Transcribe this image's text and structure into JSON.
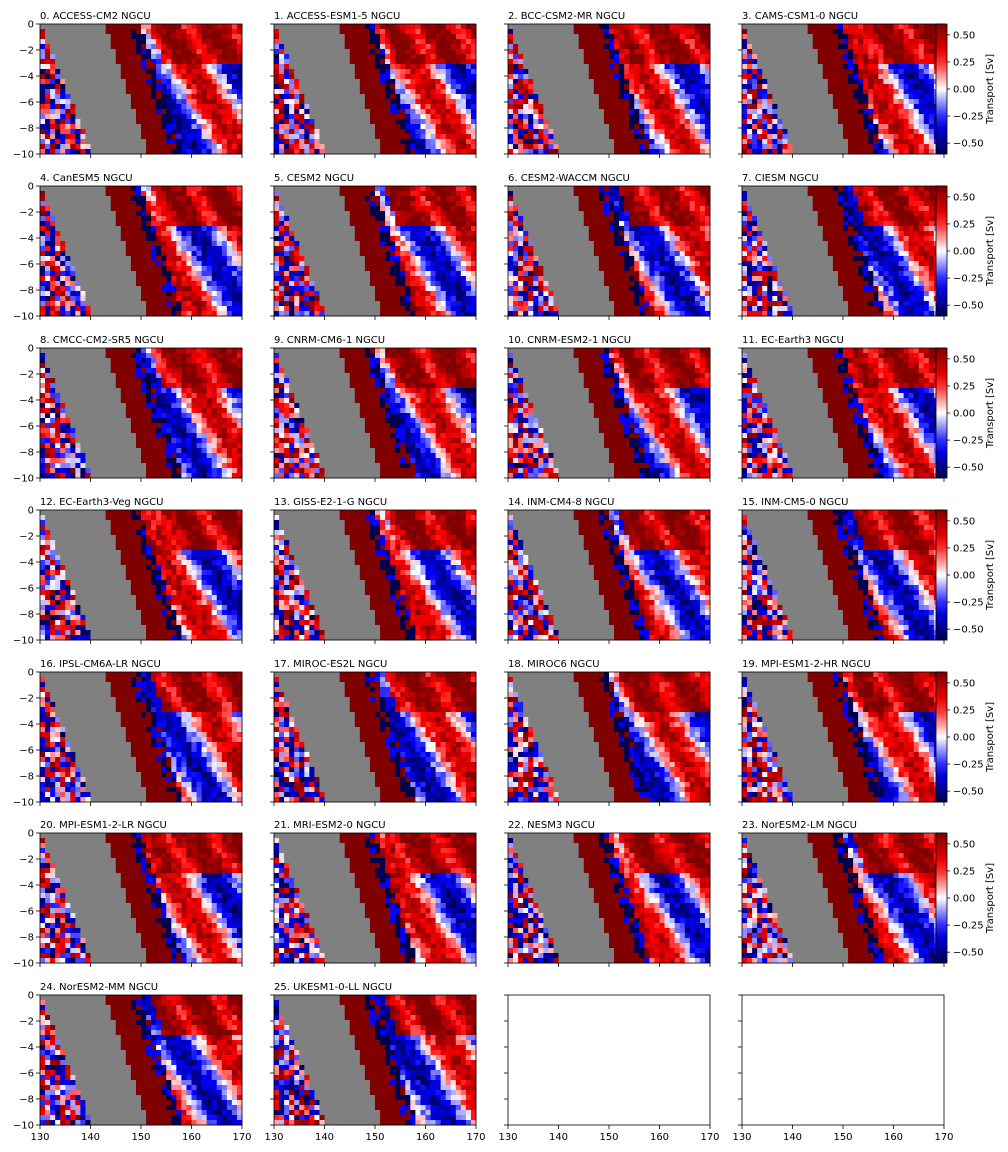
{
  "chart_data": {
    "type": "heatmap",
    "layout": {
      "rows": 7,
      "cols": 4,
      "panel_count": 28
    },
    "panels": [
      {
        "title": "0. ACCESS-CM2 NGCU"
      },
      {
        "title": "1. ACCESS-ESM1-5 NGCU"
      },
      {
        "title": "2. BCC-CSM2-MR NGCU"
      },
      {
        "title": "3. CAMS-CSM1-0 NGCU"
      },
      {
        "title": "4. CanESM5 NGCU"
      },
      {
        "title": "5. CESM2 NGCU"
      },
      {
        "title": "6. CESM2-WACCM NGCU"
      },
      {
        "title": "7. CIESM NGCU"
      },
      {
        "title": "8. CMCC-CM2-SR5 NGCU"
      },
      {
        "title": "9. CNRM-CM6-1 NGCU"
      },
      {
        "title": "10. CNRM-ESM2-1 NGCU"
      },
      {
        "title": "11. EC-Earth3 NGCU"
      },
      {
        "title": "12. EC-Earth3-Veg NGCU"
      },
      {
        "title": "13. GISS-E2-1-G NGCU"
      },
      {
        "title": "14. INM-CM4-8 NGCU"
      },
      {
        "title": "15. INM-CM5-0 NGCU"
      },
      {
        "title": "16. IPSL-CM6A-LR NGCU"
      },
      {
        "title": "17. MIROC-ES2L NGCU"
      },
      {
        "title": "18. MIROC6 NGCU"
      },
      {
        "title": "19. MPI-ESM1-2-HR NGCU"
      },
      {
        "title": "20. MPI-ESM1-2-LR NGCU"
      },
      {
        "title": "21. MRI-ESM2-0 NGCU"
      },
      {
        "title": "22. NESM3 NGCU"
      },
      {
        "title": "23. NorESM2-LM NGCU"
      },
      {
        "title": "24. NorESM2-MM NGCU"
      },
      {
        "title": "25. UKESM1-0-LL NGCU"
      },
      {
        "title": ""
      },
      {
        "title": ""
      }
    ],
    "x_ticks": [
      "130",
      "140",
      "150",
      "160",
      "170"
    ],
    "y_ticks": [
      "0",
      "−2",
      "−4",
      "−6",
      "−8",
      "−10"
    ],
    "xlim": [
      130,
      170
    ],
    "ylim": [
      -10,
      0
    ],
    "colorbar": {
      "label": "Transport [Sv]",
      "ticks": [
        "0.50",
        "0.25",
        "0.00",
        "−0.25",
        "−0.50"
      ],
      "range": [
        -0.6,
        0.6
      ],
      "colormap": "seismic"
    },
    "land_color": "#808080",
    "grid": false
  }
}
